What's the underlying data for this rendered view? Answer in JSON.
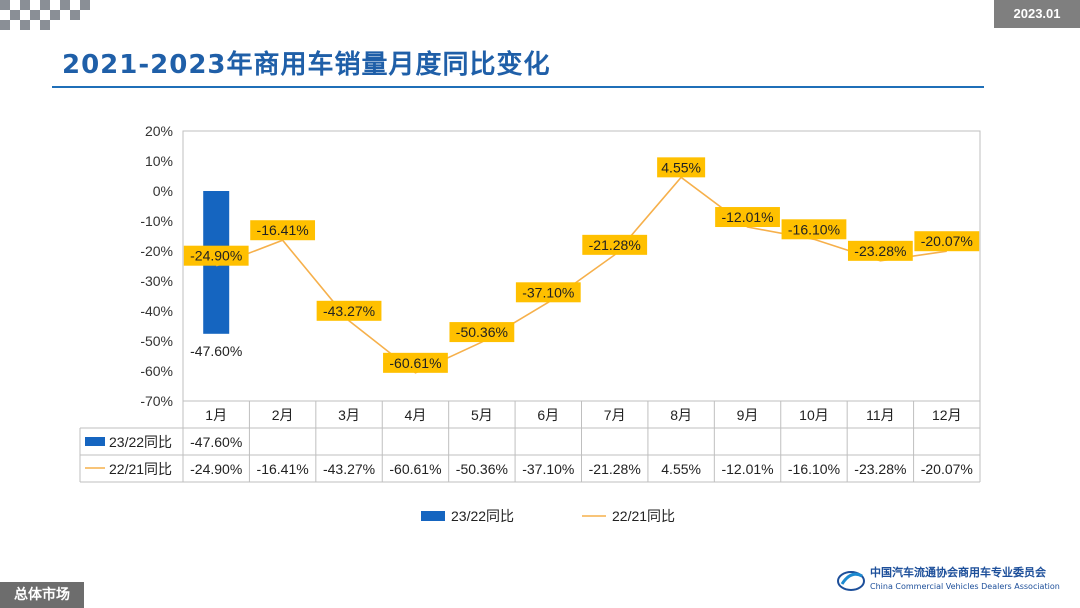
{
  "header": {
    "title": "2021-2023年商用车销量月度同比变化",
    "date_badge": "2023.01"
  },
  "footer": {
    "section_label": "总体市场",
    "org_name_cn": "中国汽车流通协会商用车专业委员会",
    "org_name_en": "China Commercial Vehicles Dealers Association"
  },
  "chart_data": {
    "type": "bar",
    "categories": [
      "1月",
      "2月",
      "3月",
      "4月",
      "5月",
      "6月",
      "7月",
      "8月",
      "9月",
      "10月",
      "11月",
      "12月"
    ],
    "ylim": [
      -70,
      20
    ],
    "yticks": [
      "20%",
      "10%",
      "0%",
      "-10%",
      "-20%",
      "-30%",
      "-40%",
      "-50%",
      "-60%",
      "-70%"
    ],
    "series": [
      {
        "name": "23/22同比",
        "kind": "bar",
        "color": "#1565c0",
        "values": [
          -47.6,
          null,
          null,
          null,
          null,
          null,
          null,
          null,
          null,
          null,
          null,
          null
        ],
        "labels": [
          "-47.60%",
          "",
          "",
          "",
          "",
          "",
          "",
          "",
          "",
          "",
          "",
          ""
        ]
      },
      {
        "name": "22/21同比",
        "kind": "line",
        "color": "#f6b04b",
        "values": [
          -24.9,
          -16.41,
          -43.27,
          -60.61,
          -50.36,
          -37.1,
          -21.28,
          4.55,
          -12.01,
          -16.1,
          -23.28,
          -20.07
        ],
        "labels": [
          "-24.90%",
          "-16.41%",
          "-43.27%",
          "-60.61%",
          "-50.36%",
          "-37.10%",
          "-21.28%",
          "4.55%",
          "-12.01%",
          "-16.10%",
          "-23.28%",
          "-20.07%"
        ]
      }
    ],
    "legend_position": "bottom",
    "data_table": true,
    "grid": false
  }
}
